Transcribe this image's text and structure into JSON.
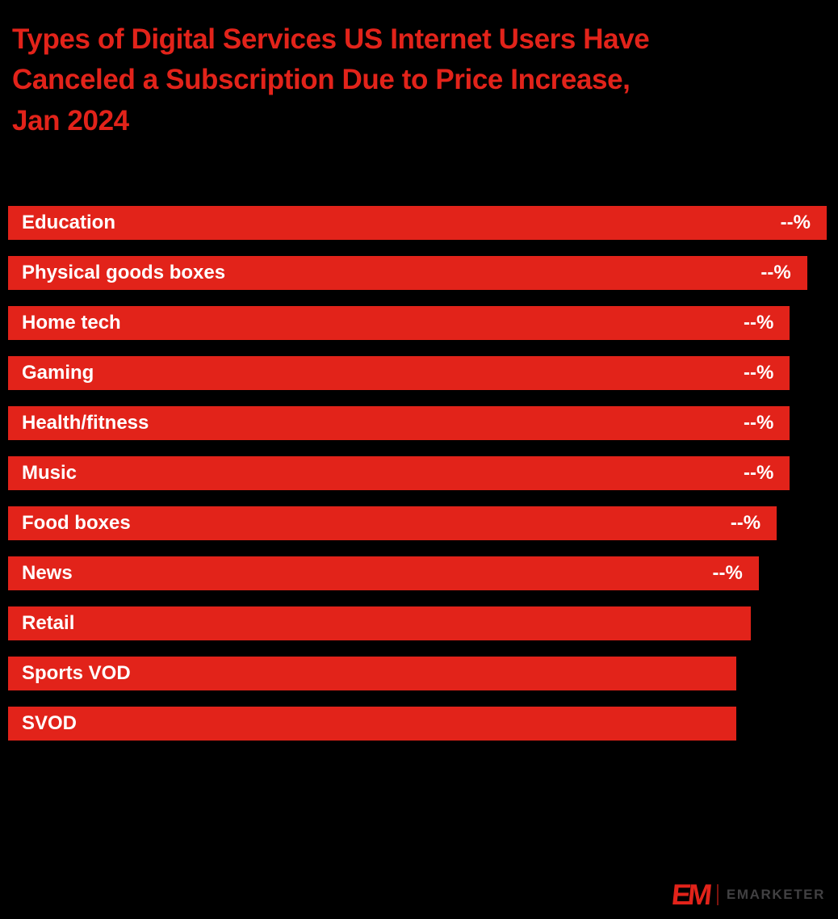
{
  "colors": {
    "background": "#000000",
    "accent_red": "#E2231A",
    "bar_fill": "#E2231A",
    "bar_text": "#FFFFFF",
    "logo_mark_red": "#E2231A",
    "logo_text_gray": "#414042"
  },
  "header": {
    "title": "Types of Digital Services US Internet Users Have Canceled a Subscription Due to Price Increase, Jan 2024",
    "title_lines": [
      "Types of Digital Services US Internet Users Have",
      "Canceled a Subscription Due to Price Increase,",
      "Jan 2024"
    ]
  },
  "chart_data": {
    "type": "bar",
    "orientation": "horizontal",
    "title": "Types of Digital Services US Internet Users Have Canceled a Subscription Due to Price Increase, Jan 2024",
    "values_hidden": true,
    "categories": [
      "Education",
      "Physical goods boxes",
      "Home tech",
      "Gaming",
      "Health/fitness",
      "Music",
      "Food boxes",
      "News",
      "Retail",
      "Sports VOD",
      "SVOD"
    ],
    "value_labels": [
      "--%",
      "--%",
      "--%",
      "--%",
      "--%",
      "--%",
      "--%",
      "--%",
      "",
      "",
      ""
    ],
    "values": [
      null,
      null,
      null,
      null,
      null,
      null,
      null,
      null,
      null,
      null,
      null
    ],
    "bar_relative_widths_pct": [
      100,
      97.6,
      95.5,
      95.5,
      95.5,
      95.5,
      93.9,
      91.7,
      90.7,
      89,
      89
    ],
    "xlabel": "",
    "ylabel": "",
    "legend": "none",
    "gridlines": false
  },
  "footer": {
    "logo_mark": "EM",
    "logo_text": "EMARKETER"
  }
}
